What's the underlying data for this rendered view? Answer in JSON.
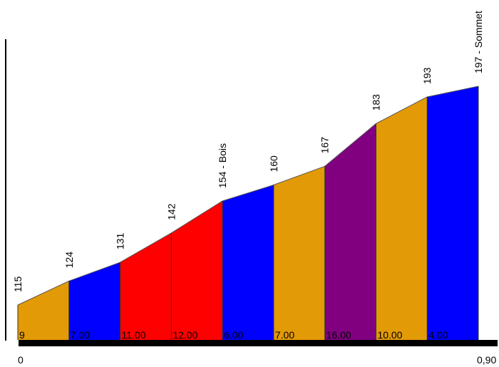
{
  "chart_data": {
    "type": "area",
    "x": [
      0,
      0.1,
      0.2,
      0.3,
      0.4,
      0.5,
      0.6,
      0.7,
      0.8,
      0.9
    ],
    "altitudes": [
      115,
      124,
      131,
      142,
      154,
      160,
      167,
      183,
      193,
      197
    ],
    "point_labels": [
      "115",
      "124",
      "131",
      "142",
      "154 - Bois",
      "160",
      "167",
      "183",
      "193",
      "197 - Sommet"
    ],
    "segments": [
      {
        "gradient": "9",
        "color": "#E39A07"
      },
      {
        "gradient": "7.00",
        "color": "#0000FF"
      },
      {
        "gradient": "11.00",
        "color": "#FF0000"
      },
      {
        "gradient": "12.00",
        "color": "#FF0000"
      },
      {
        "gradient": "6.00",
        "color": "#0000FF"
      },
      {
        "gradient": "7.00",
        "color": "#E39A07"
      },
      {
        "gradient": "16.00",
        "color": "#800080"
      },
      {
        "gradient": "10.00",
        "color": "#E39A07"
      },
      {
        "gradient": "4.00",
        "color": "#0000FF"
      }
    ],
    "x_tick_labels": {
      "start": "0",
      "end": "0,90"
    },
    "xlim": [
      0,
      0.9
    ],
    "ylim": [
      100,
      215
    ],
    "grid": false,
    "legend": "none"
  }
}
